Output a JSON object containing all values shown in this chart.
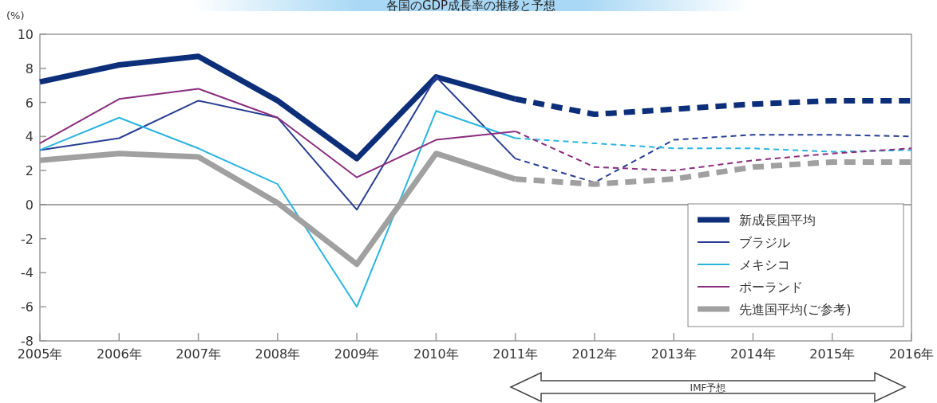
{
  "chart_data": {
    "type": "line",
    "title": "各国のGDP成長率の推移と予想",
    "ylabel": "(%)",
    "xlim": [
      2005,
      2016
    ],
    "xticks": [
      {
        "value": 2005,
        "label": "2005年"
      },
      {
        "value": 2006,
        "label": "2006年"
      },
      {
        "value": 2007,
        "label": "2007年"
      },
      {
        "value": 2008,
        "label": "2008年"
      },
      {
        "value": 2009,
        "label": "2009年"
      },
      {
        "value": 2010,
        "label": "2010年"
      },
      {
        "value": 2011,
        "label": "2011年"
      },
      {
        "value": 2012,
        "label": "2012年"
      },
      {
        "value": 2013,
        "label": "2013年"
      },
      {
        "value": 2014,
        "label": "2014年"
      },
      {
        "value": 2015,
        "label": "2015年"
      },
      {
        "value": 2016,
        "label": "2016年"
      }
    ],
    "ylim": [
      -8,
      10
    ],
    "yticks": [
      -8,
      -6,
      -4,
      -2,
      0,
      2,
      4,
      6,
      8,
      10
    ],
    "grid": false,
    "legend": "bottom right",
    "ref_lines": [
      {
        "axis": "y",
        "value": 0,
        "color": "#888888"
      }
    ],
    "annotations": [
      "IMF予想"
    ],
    "series": [
      {
        "name": "新成長国平均",
        "color": "#0d2f7a",
        "line_style": "solid",
        "x": [
          2005,
          2006,
          2007,
          2008,
          2009,
          2010,
          2011
        ],
        "values": [
          7.2,
          8.2,
          8.7,
          6.1,
          2.7,
          7.5,
          6.2
        ]
      },
      {
        "name": "ブラジル",
        "color": "#2a3f94",
        "line_style": "solid",
        "x": [
          2005,
          2006,
          2007,
          2008,
          2009,
          2010,
          2011
        ],
        "values": [
          3.2,
          3.9,
          6.1,
          5.1,
          -0.3,
          7.5,
          2.7
        ]
      },
      {
        "name": "メキシコ",
        "color": "#2ab4e0",
        "line_style": "solid",
        "x": [
          2005,
          2006,
          2007,
          2008,
          2009,
          2010,
          2011
        ],
        "values": [
          3.2,
          5.1,
          3.3,
          1.2,
          -6.0,
          5.5,
          3.9
        ]
      },
      {
        "name": "ポーランド",
        "color": "#8a2d7e",
        "line_style": "solid",
        "x": [
          2005,
          2006,
          2007,
          2008,
          2009,
          2010,
          2011
        ],
        "values": [
          3.6,
          6.2,
          6.8,
          5.1,
          1.6,
          3.8,
          4.3
        ]
      },
      {
        "name": "先進国平均(ご参考)",
        "color": "#a0a0a0",
        "line_style": "solid",
        "x": [
          2005,
          2006,
          2007,
          2008,
          2009,
          2010,
          2011
        ],
        "values": [
          2.6,
          3.0,
          2.8,
          0.1,
          -3.5,
          3.0,
          1.5
        ]
      },
      {
        "color": "#0d2f7a",
        "line_style": "dashed",
        "x": [
          2011,
          2012,
          2013,
          2014,
          2015,
          2016
        ],
        "values": [
          6.2,
          5.3,
          5.6,
          5.9,
          6.1,
          6.1
        ]
      },
      {
        "color": "#2a3f94",
        "line_style": "dashed",
        "x": [
          2011,
          2012,
          2013,
          2014,
          2015,
          2016
        ],
        "values": [
          2.7,
          1.3,
          3.8,
          4.1,
          4.1,
          4.0
        ]
      },
      {
        "color": "#2ab4e0",
        "line_style": "dashed",
        "x": [
          2011,
          2012,
          2013,
          2014,
          2015,
          2016
        ],
        "values": [
          3.9,
          3.6,
          3.3,
          3.3,
          3.1,
          3.2
        ]
      },
      {
        "color": "#8a2d7e",
        "line_style": "dashed",
        "x": [
          2011,
          2012,
          2013,
          2014,
          2015,
          2016
        ],
        "values": [
          4.3,
          2.2,
          2.0,
          2.6,
          3.0,
          3.3
        ]
      },
      {
        "color": "#a0a0a0",
        "line_style": "dashed",
        "x": [
          2011,
          2012,
          2013,
          2014,
          2015,
          2016
        ],
        "values": [
          1.5,
          1.2,
          1.5,
          2.2,
          2.5,
          2.5
        ]
      }
    ]
  }
}
